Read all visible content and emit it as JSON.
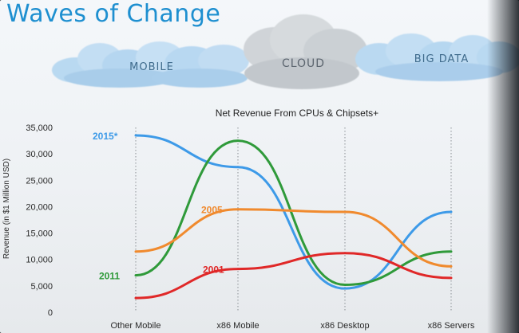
{
  "slide": {
    "title": "Waves of Change",
    "clouds": [
      "MOBILE",
      "CLOUD",
      "BIG DATA"
    ]
  },
  "colors": {
    "title": "#1e8fd0",
    "cloud_blue": "#b7d8f1",
    "cloud_gray": "#cfd4d9"
  },
  "chart_data": {
    "type": "line",
    "title": "Net Revenue From CPUs & Chipsets+",
    "ylabel": "Revenue (in $1 Million USD)",
    "xlabel": "",
    "categories": [
      "Other Mobile",
      "x86 Mobile",
      "x86 Desktop",
      "x86 Servers"
    ],
    "yticks": [
      "0",
      "5,000",
      "10,000",
      "15,000",
      "20,000",
      "25,000",
      "30,000",
      "35,000"
    ],
    "ylim": [
      0,
      35000
    ],
    "grid": false,
    "series": [
      {
        "name": "2015*",
        "color": "#3d9ae8",
        "values": [
          33500,
          27500,
          4500,
          19000
        ]
      },
      {
        "name": "2011",
        "color": "#2f9a3a",
        "values": [
          7000,
          32500,
          5200,
          11500
        ]
      },
      {
        "name": "2005",
        "color": "#f08a2e",
        "values": [
          11500,
          19500,
          19000,
          8700
        ]
      },
      {
        "name": "2001",
        "color": "#e02828",
        "values": [
          2700,
          8200,
          11200,
          6500
        ]
      }
    ]
  }
}
